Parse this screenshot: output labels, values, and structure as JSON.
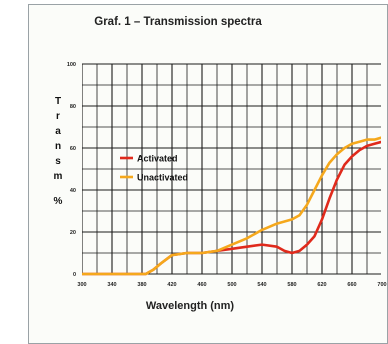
{
  "chart_data": {
    "type": "line",
    "title": "Graf. 1 – Transmission spectra",
    "xlabel": "Wavelength (nm)",
    "ylabel": "Transm %",
    "xlim": [
      300,
      700
    ],
    "ylim": [
      0,
      100
    ],
    "x_ticks": [
      "300",
      "340",
      "380",
      "420",
      "460",
      "500",
      "540",
      "580",
      "620",
      "660",
      "700"
    ],
    "y_ticks": [
      "0",
      "20",
      "40",
      "60",
      "80",
      "100"
    ],
    "grid": true,
    "legend_position": "center-left",
    "series": [
      {
        "name": "Activated",
        "color": "#e02a1c",
        "x": [
          300,
          385,
          395,
          405,
          420,
          440,
          460,
          480,
          500,
          520,
          540,
          560,
          570,
          580,
          590,
          600,
          610,
          620,
          630,
          640,
          650,
          660,
          670,
          680,
          690,
          700
        ],
        "y": [
          0,
          0,
          2,
          5,
          9,
          10,
          10,
          11,
          12,
          13,
          14,
          13,
          11,
          10,
          11,
          14,
          18,
          26,
          36,
          45,
          52,
          56,
          59,
          61,
          62,
          63
        ]
      },
      {
        "name": "Unactivated",
        "color": "#f5a81c",
        "x": [
          300,
          385,
          395,
          405,
          420,
          440,
          460,
          480,
          500,
          520,
          540,
          560,
          570,
          580,
          590,
          600,
          610,
          620,
          630,
          640,
          650,
          660,
          670,
          680,
          690,
          700
        ],
        "y": [
          0,
          0,
          2,
          5,
          9,
          10,
          10,
          11,
          14,
          17,
          21,
          24,
          25,
          26,
          28,
          33,
          40,
          47,
          53,
          57,
          60,
          62,
          63,
          64,
          64,
          65
        ]
      }
    ]
  },
  "ylabel_letters": [
    "T",
    "r",
    "a",
    "n",
    "s",
    "m",
    "",
    "%"
  ]
}
